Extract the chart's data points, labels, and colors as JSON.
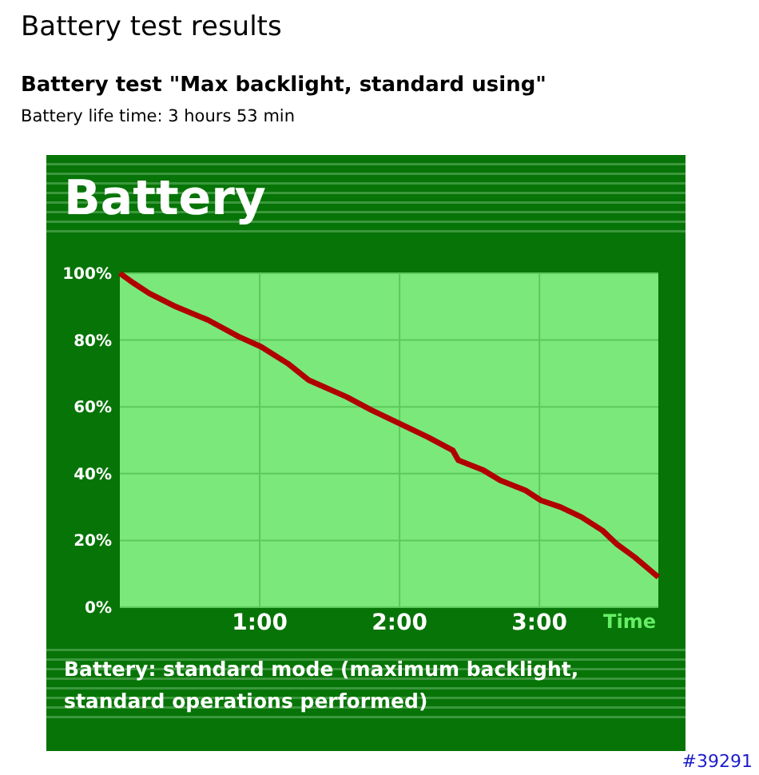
{
  "chart_data": {
    "type": "line",
    "title": "Battery test results",
    "subtitle": "Battery test \"Max backlight, standard using\"",
    "xlabel": "Time",
    "annotations": [
      "Battery life time: 3 hours 53 min",
      "Battery",
      "Battery: standard mode (maximum backlight, standard operations performed)",
      "#39291"
    ],
    "x": [
      0,
      0.1,
      0.21,
      0.4,
      0.63,
      0.85,
      1.01,
      1.2,
      1.35,
      1.62,
      1.8,
      2.0,
      2.2,
      2.38,
      2.42,
      2.6,
      2.72,
      2.9,
      3.01,
      3.15,
      3.3,
      3.45,
      3.55,
      3.68,
      3.85
    ],
    "series": [
      {
        "color": "#b00000",
        "values": [
          100,
          97,
          94,
          90,
          86,
          81,
          78,
          73,
          68,
          63,
          59,
          55,
          51,
          47,
          44,
          41,
          38,
          35,
          32,
          30,
          27,
          23,
          19,
          15,
          9
        ]
      }
    ],
    "xlim": [
      0,
      3.85
    ],
    "xticks": [
      {
        "value": 1,
        "label": "1:00"
      },
      {
        "value": 2,
        "label": "2:00"
      },
      {
        "value": 3,
        "label": "3:00"
      }
    ],
    "ylim": [
      0,
      100
    ],
    "yticks": [
      {
        "value": 0,
        "label": "0%"
      },
      {
        "value": 20,
        "label": "20%"
      },
      {
        "value": 40,
        "label": "40%"
      },
      {
        "value": 60,
        "label": "60%"
      },
      {
        "value": 80,
        "label": "80%"
      },
      {
        "value": 100,
        "label": "100%"
      }
    ],
    "grid": true,
    "marker": "none",
    "line_style": "solid"
  }
}
